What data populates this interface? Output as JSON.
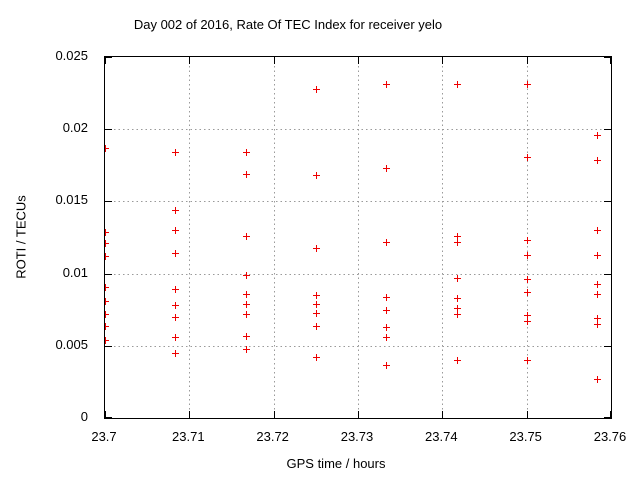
{
  "chart_data": {
    "type": "scatter",
    "title": "Day 002 of 2016, Rate Of TEC Index for receiver yelo",
    "xlabel": "GPS time / hours",
    "ylabel": "ROTI / TECUs",
    "xlim": [
      23.7,
      23.76
    ],
    "ylim": [
      0,
      0.025
    ],
    "xticks": [
      23.7,
      23.71,
      23.72,
      23.73,
      23.74,
      23.75,
      23.76
    ],
    "xtick_labels": [
      "23.7",
      "23.71",
      "23.72",
      "23.73",
      "23.74",
      "23.75",
      "23.76"
    ],
    "yticks": [
      0,
      0.005,
      0.01,
      0.015,
      0.02,
      0.025
    ],
    "ytick_labels": [
      "0",
      "0.005",
      "0.01",
      "0.015",
      "0.02",
      "0.025"
    ],
    "grid": true,
    "legend": "none",
    "colors": {
      "marker": "#ee0000",
      "grid": "#9a9a9a",
      "axis": "#000000",
      "background": "#ffffff"
    },
    "marker": {
      "shape": "plus",
      "size": 7
    },
    "series": [
      {
        "name": "ROTI",
        "points": [
          [
            23.7,
            0.0187
          ],
          [
            23.7,
            0.0129
          ],
          [
            23.7,
            0.0121
          ],
          [
            23.7,
            0.0112
          ],
          [
            23.7,
            0.0091
          ],
          [
            23.7,
            0.0081
          ],
          [
            23.7,
            0.0072
          ],
          [
            23.7,
            0.0064
          ],
          [
            23.7,
            0.0054
          ],
          [
            23.7083,
            0.0184
          ],
          [
            23.7083,
            0.0144
          ],
          [
            23.7083,
            0.013
          ],
          [
            23.7083,
            0.0114
          ],
          [
            23.7083,
            0.0089
          ],
          [
            23.7083,
            0.0078
          ],
          [
            23.7083,
            0.007
          ],
          [
            23.7083,
            0.0056
          ],
          [
            23.7083,
            0.0045
          ],
          [
            23.7167,
            0.0184
          ],
          [
            23.7167,
            0.0169
          ],
          [
            23.7167,
            0.0126
          ],
          [
            23.7167,
            0.0099
          ],
          [
            23.7167,
            0.0086
          ],
          [
            23.7167,
            0.0079
          ],
          [
            23.7167,
            0.0072
          ],
          [
            23.7167,
            0.0057
          ],
          [
            23.7167,
            0.0048
          ],
          [
            23.725,
            0.0228
          ],
          [
            23.725,
            0.0168
          ],
          [
            23.725,
            0.0118
          ],
          [
            23.725,
            0.0085
          ],
          [
            23.725,
            0.0079
          ],
          [
            23.725,
            0.0073
          ],
          [
            23.725,
            0.0064
          ],
          [
            23.725,
            0.0042
          ],
          [
            23.7333,
            0.0231
          ],
          [
            23.7333,
            0.0173
          ],
          [
            23.7333,
            0.0122
          ],
          [
            23.7333,
            0.0084
          ],
          [
            23.7333,
            0.0075
          ],
          [
            23.7333,
            0.0063
          ],
          [
            23.7333,
            0.0056
          ],
          [
            23.7333,
            0.0037
          ],
          [
            23.7417,
            0.0231
          ],
          [
            23.7417,
            0.0126
          ],
          [
            23.7417,
            0.0122
          ],
          [
            23.7417,
            0.0097
          ],
          [
            23.7417,
            0.0083
          ],
          [
            23.7417,
            0.0076
          ],
          [
            23.7417,
            0.0072
          ],
          [
            23.7417,
            0.004
          ],
          [
            23.75,
            0.0231
          ],
          [
            23.75,
            0.0181
          ],
          [
            23.75,
            0.0123
          ],
          [
            23.75,
            0.0113
          ],
          [
            23.75,
            0.0096
          ],
          [
            23.75,
            0.0087
          ],
          [
            23.75,
            0.0071
          ],
          [
            23.75,
            0.0067
          ],
          [
            23.75,
            0.004
          ],
          [
            23.7583,
            0.0196
          ],
          [
            23.7583,
            0.0179
          ],
          [
            23.7583,
            0.013
          ],
          [
            23.7583,
            0.0113
          ],
          [
            23.7583,
            0.0093
          ],
          [
            23.7583,
            0.0086
          ],
          [
            23.7583,
            0.0069
          ],
          [
            23.7583,
            0.0065
          ],
          [
            23.7583,
            0.0027
          ]
        ]
      }
    ]
  }
}
